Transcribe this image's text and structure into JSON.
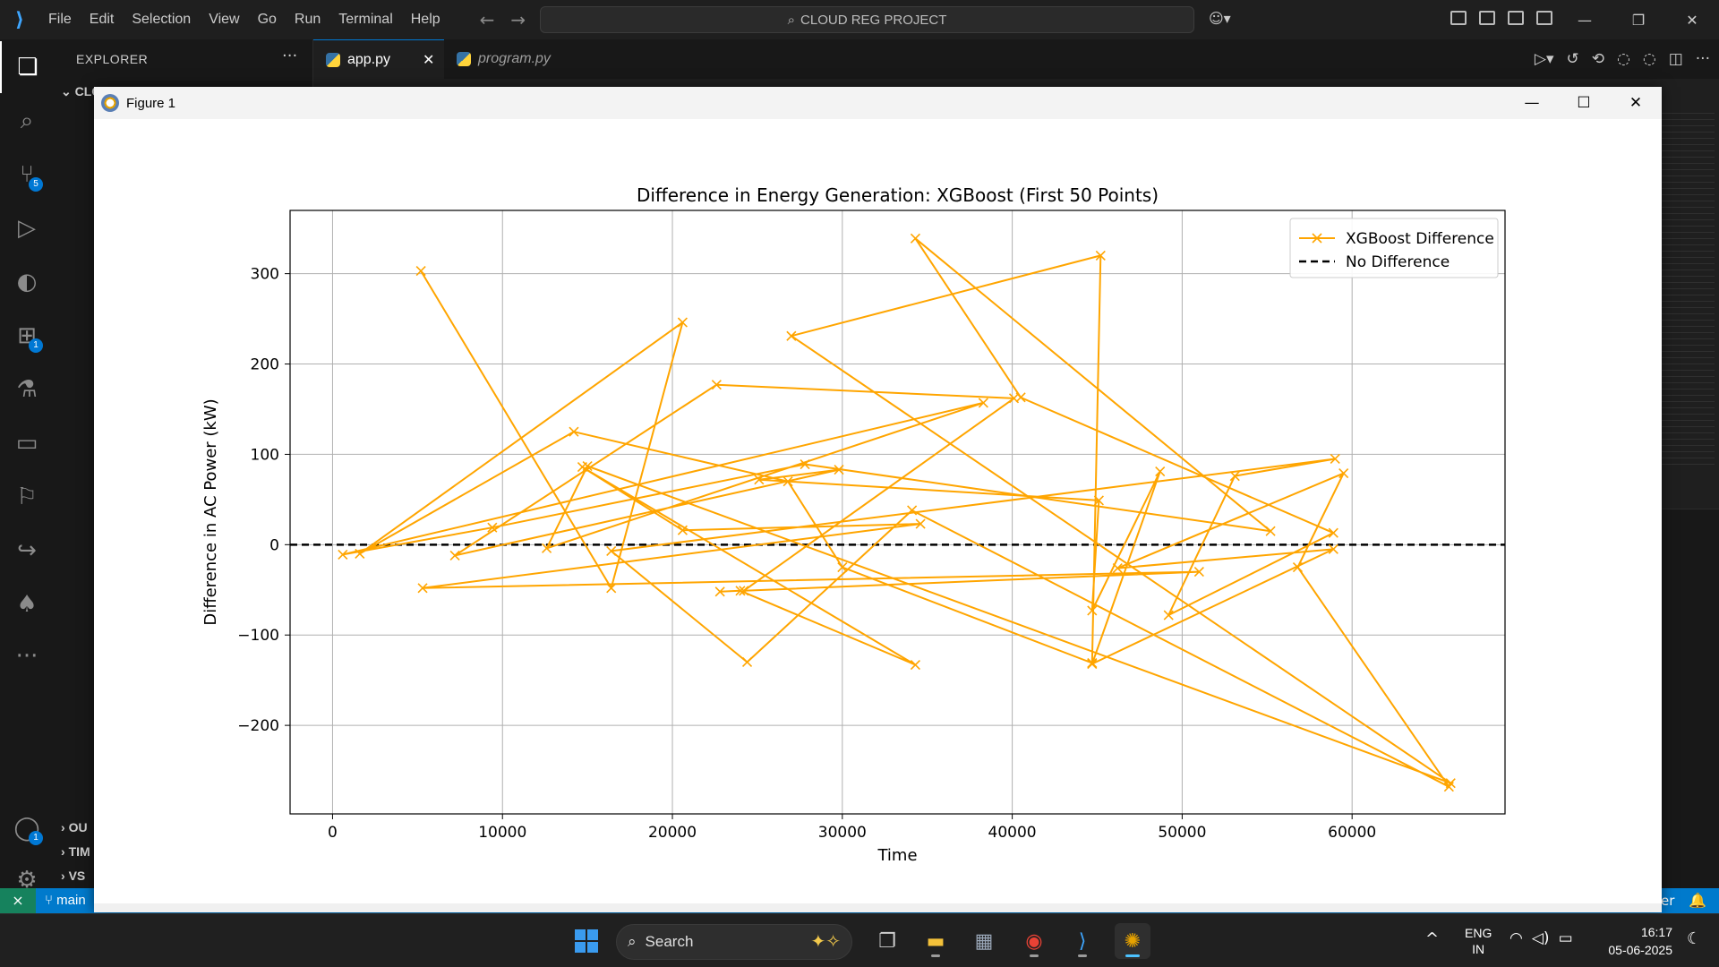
{
  "menu": [
    "File",
    "Edit",
    "Selection",
    "View",
    "Go",
    "Run",
    "Terminal",
    "Help"
  ],
  "command_center": {
    "text": "CLOUD REG PROJECT"
  },
  "activity_badges": {
    "source_control": "5",
    "extensions": "1",
    "accounts": "1"
  },
  "sidebar": {
    "title": "EXPLORER",
    "more": "···",
    "top_folder": "CLO",
    "bottom_sections": [
      "OU",
      "TIM",
      "VS"
    ]
  },
  "tabs": [
    {
      "label": "app.py",
      "active": true,
      "close": "✕"
    },
    {
      "label": "program.py",
      "active": false
    }
  ],
  "statusbar": {
    "branch": "main",
    "right_text": "er"
  },
  "figure": {
    "title": "Figure 1"
  },
  "chart_data": {
    "type": "line",
    "title": "Difference in Energy Generation: XGBoost (First 50 Points)",
    "xlabel": "Time",
    "ylabel": "Difference in AC Power (kW)",
    "xlim": [
      -2500,
      69000
    ],
    "ylim": [
      -298,
      370
    ],
    "xticks": [
      0,
      10000,
      20000,
      30000,
      40000,
      50000,
      60000
    ],
    "yticks": [
      -200,
      -100,
      0,
      100,
      200,
      300
    ],
    "grid": true,
    "legend": "top-right",
    "series": [
      {
        "name": "XGBoost Difference",
        "color": "#ffa500",
        "marker": "x",
        "x": [
          5200,
          16400,
          20600,
          1600,
          14200,
          26800,
          30000,
          44700,
          45200,
          27000,
          65800,
          15000,
          12600,
          38300,
          600,
          9400,
          27800,
          55200,
          34300,
          40500,
          58900,
          49200,
          53100,
          59000,
          16400,
          24400,
          34100,
          65700,
          56800,
          59500,
          46200,
          58900,
          44700,
          48700,
          44700,
          45100,
          25100,
          29800,
          7200,
          22600,
          40100,
          24200,
          51000,
          5300,
          34600,
          20600,
          14700,
          34300,
          24000,
          22800
        ],
        "y": [
          303,
          -48,
          246,
          -10,
          125,
          70,
          -25,
          -131,
          320,
          231,
          -264,
          87,
          -4,
          157,
          -11,
          19,
          89,
          15,
          339,
          163,
          13,
          -78,
          76,
          95,
          -7,
          -130,
          38,
          -268,
          -25,
          79,
          -26,
          -5,
          -132,
          81,
          -73,
          49,
          72,
          83,
          -12,
          177,
          162,
          -51,
          -30,
          -48,
          23,
          16,
          86,
          -133,
          -51,
          -52
        ]
      },
      {
        "name": "No Difference",
        "color": "#000000",
        "style": "dashed",
        "y_constant": 0
      }
    ]
  },
  "taskbar": {
    "search_label": "Search",
    "lang": [
      "ENG",
      "IN"
    ],
    "time": "16:17",
    "date": "05-06-2025"
  }
}
